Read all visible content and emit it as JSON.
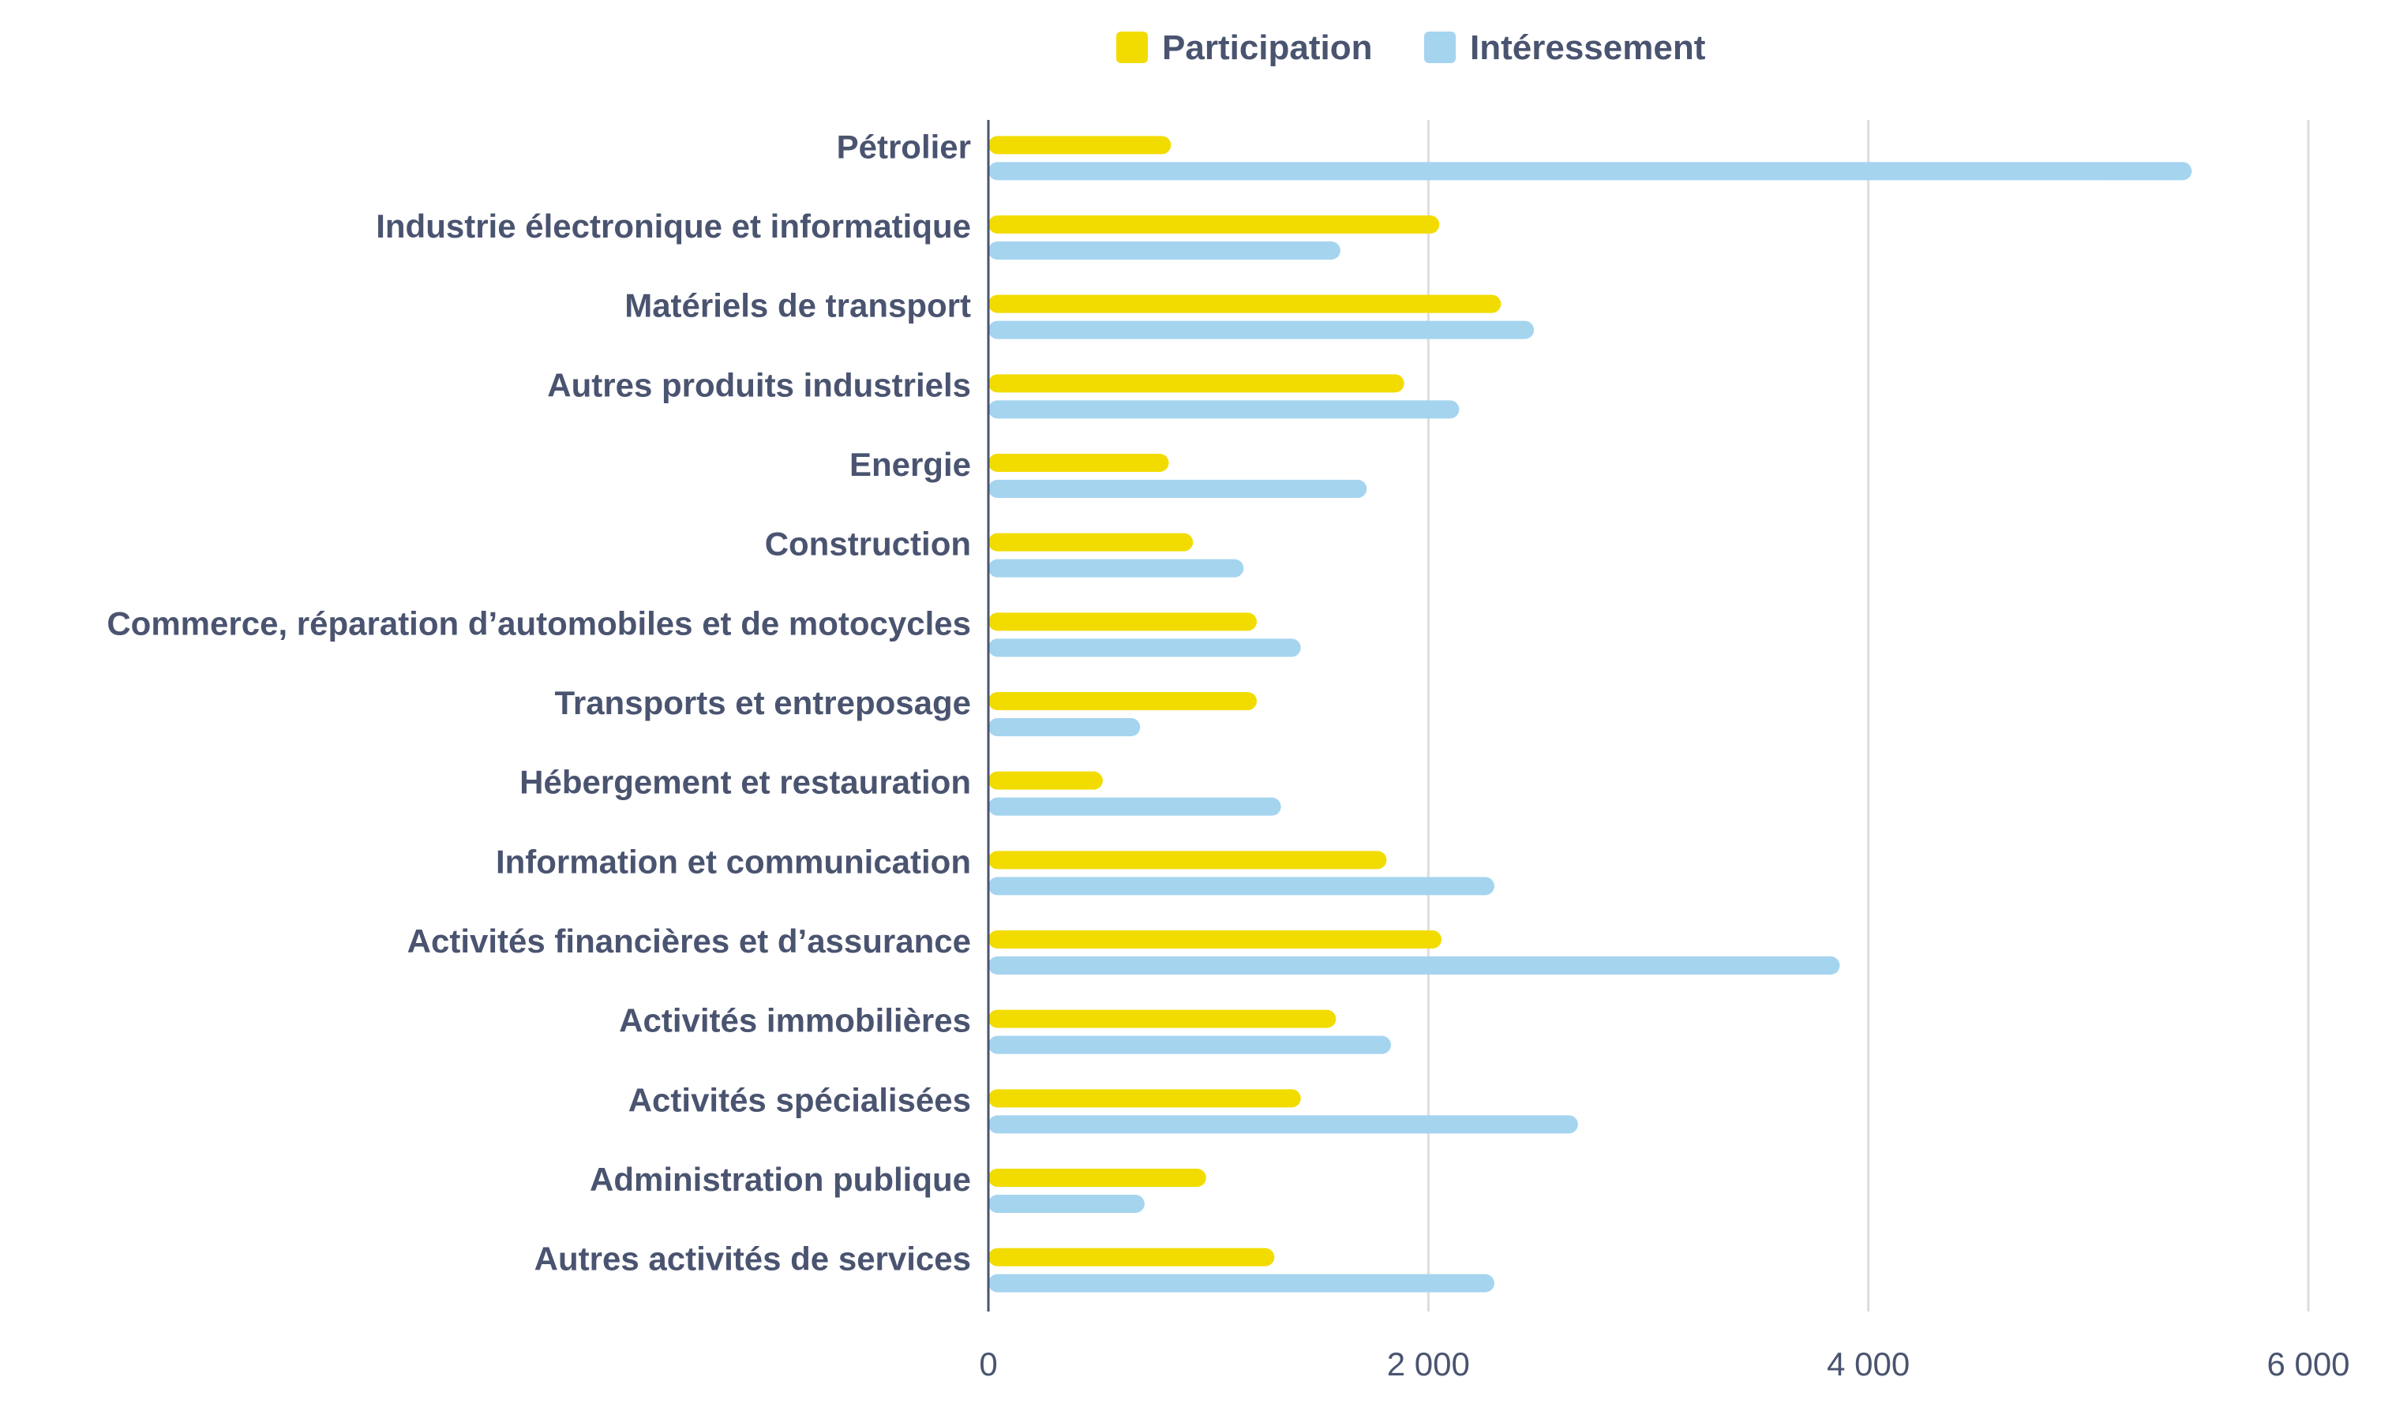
{
  "chart_data": {
    "type": "bar",
    "orientation": "horizontal",
    "categories": [
      "Pétrolier",
      "Industrie électronique et informatique",
      "Matériels de transport",
      "Autres produits industriels",
      "Energie",
      "Construction",
      "Commerce, réparation d’automobiles et de motocycles",
      "Transports et entreposage",
      "Hébergement et restauration",
      "Information et communication",
      "Activités financières et d’assurance",
      "Activités immobilières",
      "Activités spécialisées",
      "Administration publique",
      "Autres activités de services"
    ],
    "series": [
      {
        "name": "Participation",
        "color": "#f2dc00",
        "values": [
          830,
          2050,
          2330,
          1890,
          820,
          930,
          1220,
          1220,
          520,
          1810,
          2060,
          1580,
          1420,
          990,
          1300
        ]
      },
      {
        "name": "Intéressement",
        "color": "#a5d4ef",
        "values": [
          5470,
          1600,
          2480,
          2140,
          1720,
          1160,
          1420,
          690,
          1330,
          2300,
          3870,
          1830,
          2680,
          710,
          2300
        ]
      }
    ],
    "xlim": [
      0,
      6000
    ],
    "x_ticks": [
      0,
      2000,
      4000,
      6000
    ],
    "x_tick_labels": [
      "0",
      "2 000",
      "4 000",
      "6 000"
    ],
    "grid": true,
    "legend_position": "top-center"
  }
}
